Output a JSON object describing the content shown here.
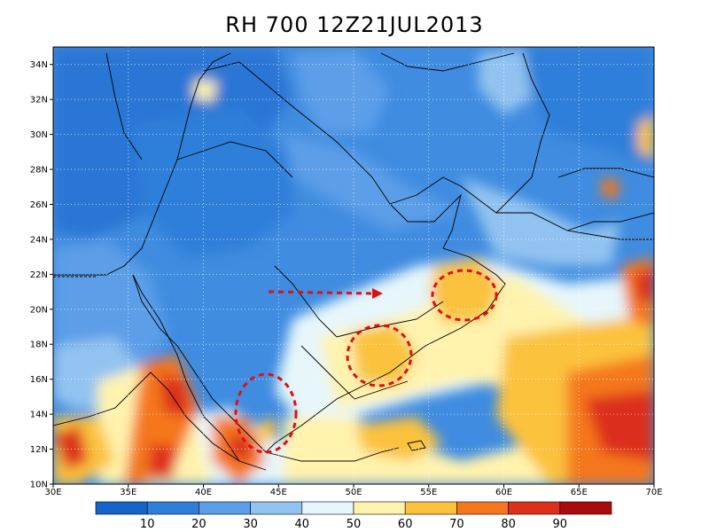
{
  "title": "RH 700  12Z21JUL2013",
  "map": {
    "lat_ticks": [
      "10N",
      "12N",
      "14N",
      "16N",
      "18N",
      "20N",
      "22N",
      "24N",
      "26N",
      "28N",
      "30N",
      "32N",
      "34N"
    ],
    "lon_ticks": [
      "30E",
      "35E",
      "40E",
      "45E",
      "50E",
      "55E",
      "60E",
      "65E",
      "70E"
    ],
    "lat_range": [
      10,
      35
    ],
    "lon_range": [
      30,
      70
    ],
    "grid": true
  },
  "colorbar": {
    "labels": [
      "10",
      "20",
      "30",
      "40",
      "50",
      "60",
      "70",
      "80",
      "90"
    ],
    "colors": [
      "#1565c8",
      "#2e7fd9",
      "#5c9ee8",
      "#92c3f0",
      "#e6f6fb",
      "#fff3ae",
      "#fbc23e",
      "#f5771e",
      "#dc2f1c",
      "#a80c0c"
    ]
  },
  "annotations": {
    "arrow_color": "#e01010",
    "circle_color": "#e01010"
  }
}
